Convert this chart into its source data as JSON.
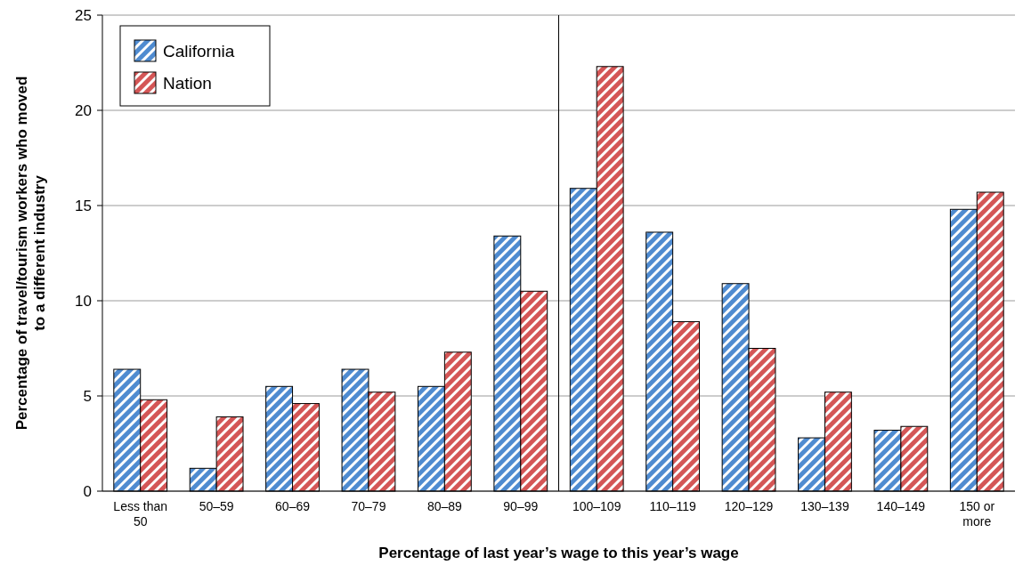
{
  "chart_data": {
    "type": "bar",
    "xlabel": "Percentage of last year’s wage to this year’s wage",
    "ylabel": "Percentage of travel/tourism workers who moved to a different industry",
    "categories": [
      "Less than 50",
      "50–59",
      "60–69",
      "70–79",
      "80–89",
      "90–99",
      "100–109",
      "110–119",
      "120–129",
      "130–139",
      "140–149",
      "150 or more"
    ],
    "series": [
      {
        "name": "California",
        "color": "#4f8bd0",
        "values": [
          6.4,
          1.2,
          5.5,
          6.4,
          5.5,
          13.4,
          15.9,
          13.6,
          10.9,
          2.8,
          3.2,
          14.8
        ]
      },
      {
        "name": "Nation",
        "color": "#d45656",
        "values": [
          4.8,
          3.9,
          4.6,
          5.2,
          7.3,
          10.5,
          22.3,
          8.9,
          7.5,
          5.2,
          3.4,
          15.7
        ]
      }
    ],
    "ylim": [
      0,
      25
    ],
    "yticks": [
      0,
      5,
      10,
      15,
      20,
      25
    ],
    "grid": "y",
    "legend": "top left",
    "ref_lines": [
      {
        "axis": "x",
        "value": "100–109",
        "color": "#000000"
      }
    ]
  }
}
